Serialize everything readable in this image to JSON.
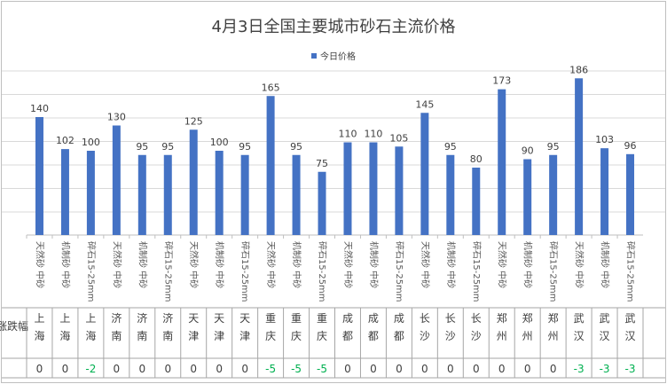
{
  "chart_data": {
    "type": "bar",
    "title": "4月3日全国主要城市砂石主流价格",
    "series": [
      {
        "name": "今日价格",
        "values": [
          140,
          102,
          100,
          130,
          95,
          95,
          125,
          100,
          95,
          165,
          95,
          75,
          110,
          110,
          105,
          145,
          95,
          80,
          173,
          90,
          95,
          186,
          103,
          96
        ]
      }
    ],
    "categories": [
      "天然砂 中砂",
      "机制砂 中砂",
      "碎石15-25mm",
      "天然砂 中砂",
      "机制砂 中砂",
      "碎石15-25mm",
      "天然砂 中砂",
      "机制砂 中砂",
      "碎石15-25mm",
      "天然砂 中砂",
      "机制砂 中砂",
      "碎石15-25mm",
      "天然砂 中砂",
      "机制砂 中砂",
      "碎石15-25mm",
      "天然砂 中砂",
      "机制砂 中砂",
      "碎石15-25mm",
      "天然砂 中砂",
      "机制砂 中砂",
      "碎石15-25mm",
      "天然砂 中砂",
      "机制砂 中砂",
      "碎石15-25mm"
    ],
    "cities": [
      "上海",
      "上海",
      "上海",
      "济南",
      "济南",
      "济南",
      "天津",
      "天津",
      "天津",
      "重庆",
      "重庆",
      "重庆",
      "成都",
      "成都",
      "成都",
      "长沙",
      "长沙",
      "长沙",
      "郑州",
      "郑州",
      "郑州",
      "武汉",
      "武汉",
      "武汉"
    ],
    "changes": [
      0,
      0,
      -2,
      0,
      0,
      0,
      0,
      0,
      0,
      -5,
      -5,
      -5,
      0,
      0,
      0,
      0,
      0,
      0,
      0,
      0,
      0,
      -3,
      -3,
      -3
    ],
    "table_row_label": "涨跌幅",
    "ylim": [
      0,
      200
    ],
    "grid": true,
    "legend_position": "top",
    "colors": {
      "bar": "#4472c4",
      "negative_change": "#00b050"
    }
  }
}
